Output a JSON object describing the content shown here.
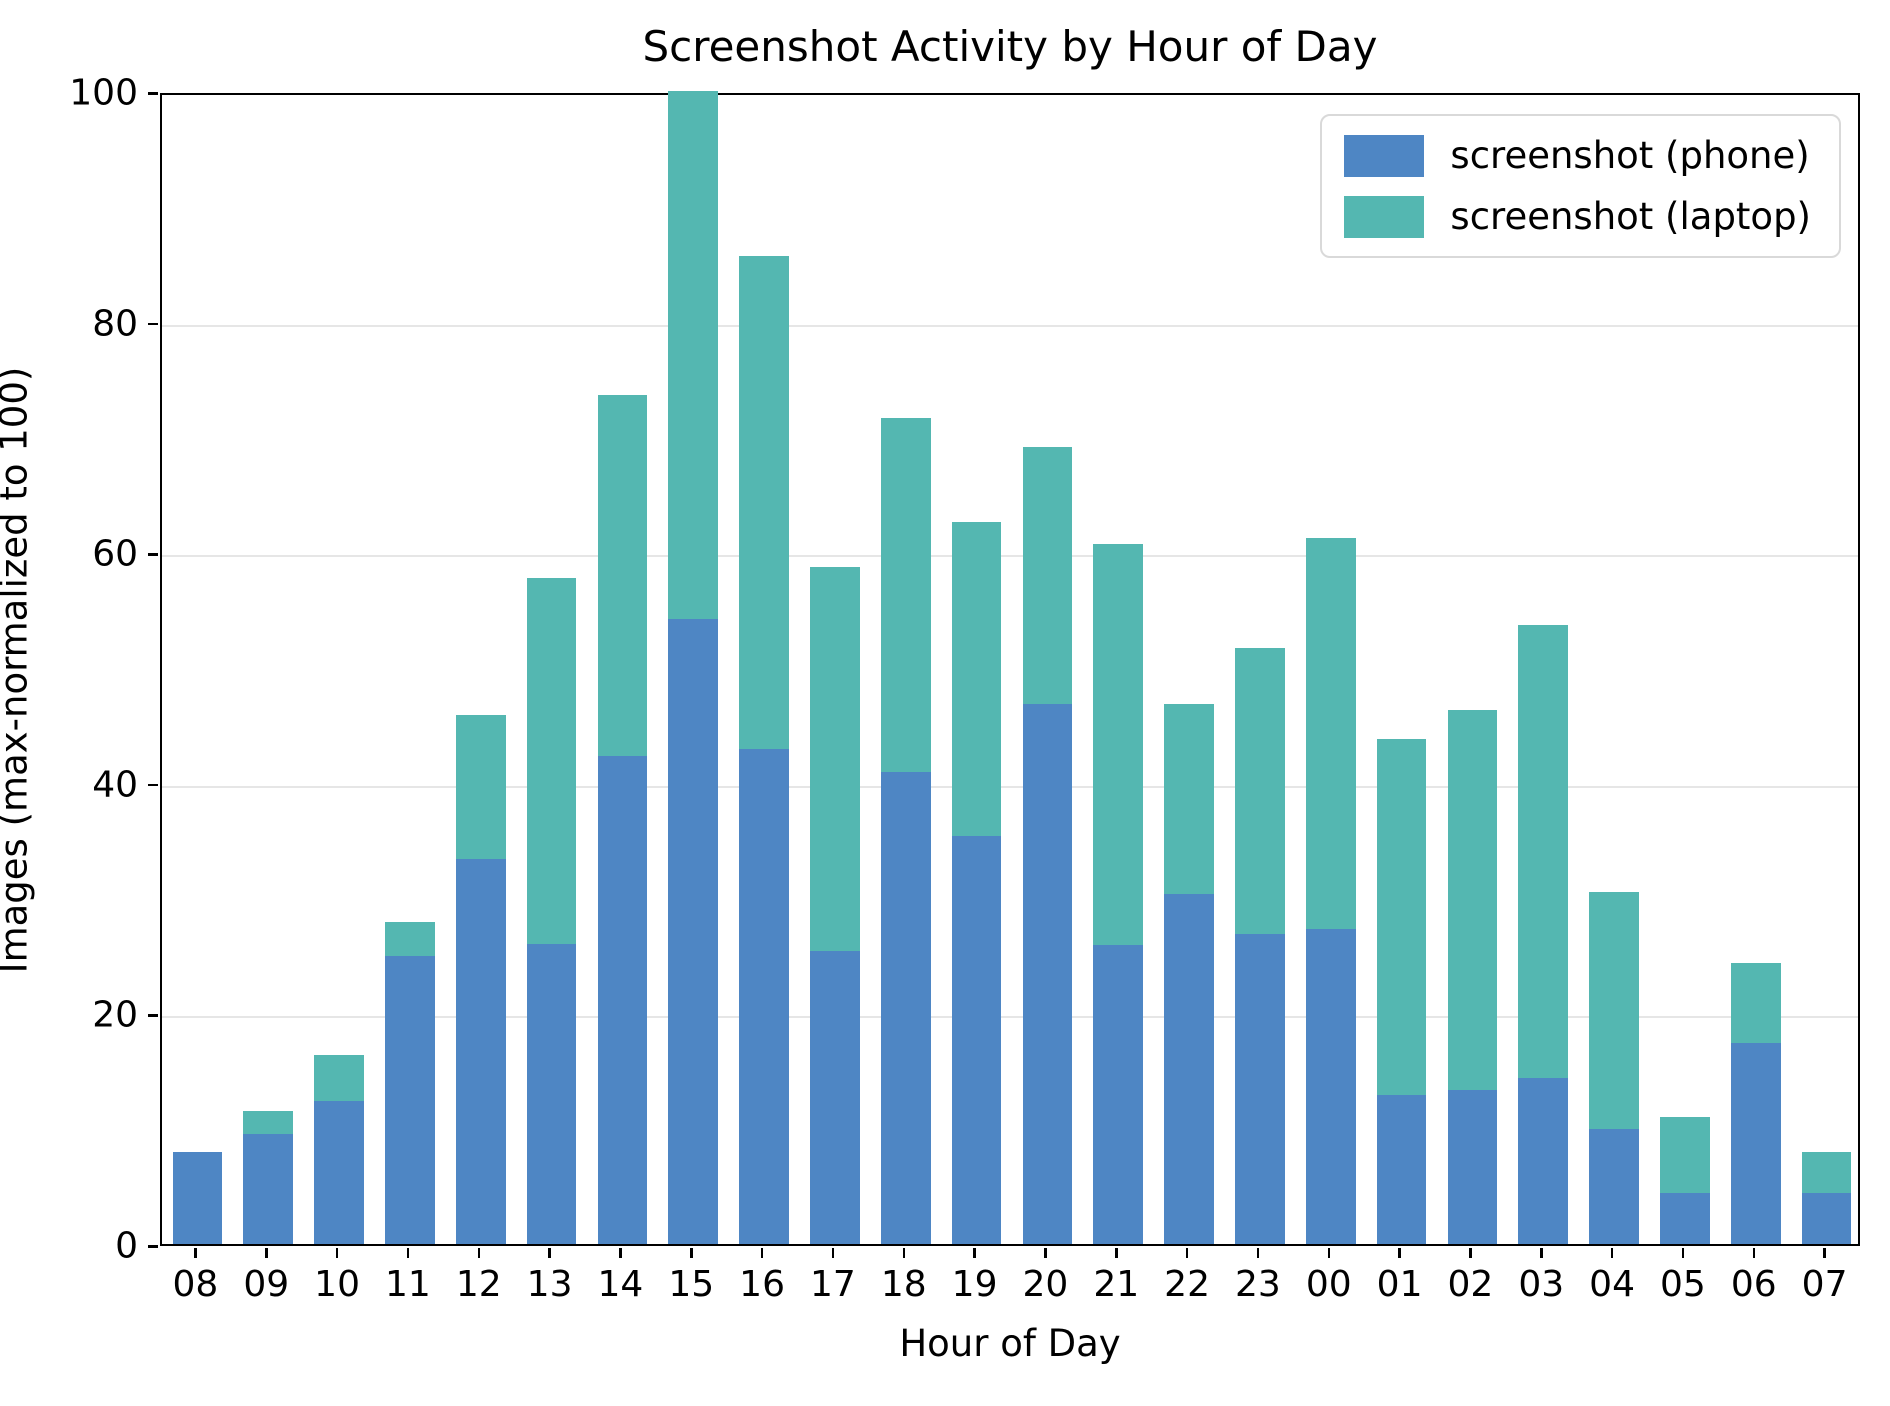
{
  "chart_data": {
    "type": "bar",
    "stacked": true,
    "title": "Screenshot Activity by Hour of Day",
    "xlabel": "Hour of Day",
    "ylabel": "Images (max-normalized to 100)",
    "ylim": [
      0,
      100
    ],
    "yticks": [
      0,
      20,
      40,
      60,
      80,
      100
    ],
    "grid": "horizontal gridlines at yticks, light gray",
    "legend_position": "upper right",
    "categories": [
      "08",
      "09",
      "10",
      "11",
      "12",
      "13",
      "14",
      "15",
      "16",
      "17",
      "18",
      "19",
      "20",
      "21",
      "22",
      "23",
      "00",
      "01",
      "02",
      "03",
      "04",
      "05",
      "06",
      "07"
    ],
    "series": [
      {
        "name": "screenshot (phone)",
        "color": "#4e86c4",
        "values": [
          8.0,
          9.5,
          12.4,
          25.0,
          33.4,
          26.0,
          42.3,
          54.2,
          42.9,
          25.4,
          40.9,
          35.4,
          46.8,
          25.9,
          30.4,
          26.9,
          27.3,
          12.9,
          13.4,
          14.4,
          10.0,
          4.4,
          17.4,
          4.4
        ]
      },
      {
        "name": "screenshot (laptop)",
        "color": "#54b7b1",
        "values": [
          0.0,
          2.0,
          4.0,
          2.9,
          12.5,
          31.8,
          31.3,
          45.8,
          42.8,
          33.3,
          30.7,
          27.2,
          22.3,
          34.8,
          16.4,
          24.8,
          33.9,
          30.9,
          32.9,
          39.3,
          20.5,
          6.6,
          7.0,
          3.6
        ]
      }
    ],
    "totals_note": "bars are stacked: phone (blue) on bottom, laptop (teal) on top"
  },
  "style": {
    "gridline_color": "#e6e6e6",
    "spine_color": "#000000",
    "background_color": "#ffffff",
    "legend_border_color": "#d9d9d9"
  }
}
